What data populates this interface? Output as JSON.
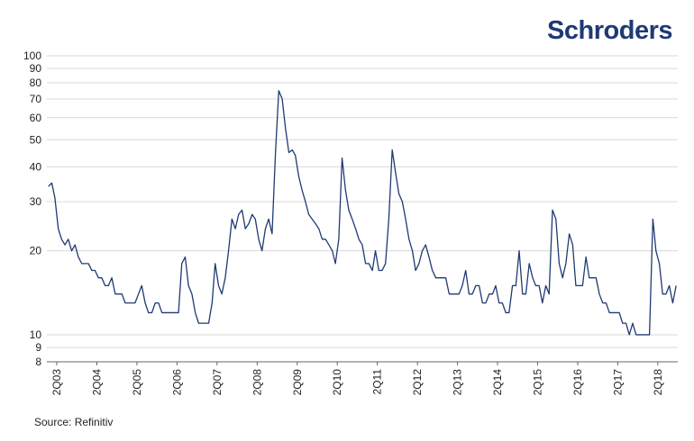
{
  "brand": {
    "name": "Schroders"
  },
  "footer": {
    "source": "Source: Refinitiv"
  },
  "colors": {
    "line": "#1f3a73",
    "grid": "#d9d9d9",
    "axis": "#666666",
    "text": "#222222"
  },
  "chart_data": {
    "type": "line",
    "title": "",
    "xlabel": "",
    "ylabel": "",
    "y_scale": "log",
    "ylim": [
      8,
      100
    ],
    "y_ticks": [
      8,
      9,
      10,
      20,
      30,
      40,
      50,
      60,
      70,
      80,
      90,
      100
    ],
    "y_tick_labels": [
      "8",
      "9",
      "10",
      "20",
      "30",
      "40",
      "50",
      "60",
      "70",
      "80",
      "90",
      "100"
    ],
    "x_range": [
      "2003-01-01",
      "2018-09-30"
    ],
    "x_tick_labels": [
      "2Q03",
      "2Q04",
      "2Q05",
      "2Q06",
      "2Q07",
      "2Q08",
      "2Q09",
      "2Q10",
      "2Q11",
      "2Q12",
      "2Q13",
      "2Q14",
      "2Q15",
      "2Q16",
      "2Q17",
      "2Q18"
    ],
    "grid": true,
    "legend": "none",
    "series": [
      {
        "x": [
          "2003-01",
          "2003-02",
          "2003-03",
          "2003-04",
          "2003-05",
          "2003-06",
          "2003-07",
          "2003-08",
          "2003-09",
          "2003-10",
          "2003-11",
          "2003-12",
          "2004-01",
          "2004-02",
          "2004-03",
          "2004-04",
          "2004-05",
          "2004-06",
          "2004-07",
          "2004-08",
          "2004-09",
          "2004-10",
          "2004-11",
          "2004-12",
          "2005-01",
          "2005-02",
          "2005-03",
          "2005-04",
          "2005-05",
          "2005-06",
          "2005-07",
          "2005-08",
          "2005-09",
          "2005-10",
          "2005-11",
          "2005-12",
          "2006-01",
          "2006-02",
          "2006-03",
          "2006-04",
          "2006-05",
          "2006-06",
          "2006-07",
          "2006-08",
          "2006-09",
          "2006-10",
          "2006-11",
          "2006-12",
          "2007-01",
          "2007-02",
          "2007-03",
          "2007-04",
          "2007-05",
          "2007-06",
          "2007-07",
          "2007-08",
          "2007-09",
          "2007-10",
          "2007-11",
          "2007-12",
          "2008-01",
          "2008-02",
          "2008-03",
          "2008-04",
          "2008-05",
          "2008-06",
          "2008-07",
          "2008-08",
          "2008-09",
          "2008-10",
          "2008-11",
          "2008-12",
          "2009-01",
          "2009-02",
          "2009-03",
          "2009-04",
          "2009-05",
          "2009-06",
          "2009-07",
          "2009-08",
          "2009-09",
          "2009-10",
          "2009-11",
          "2009-12",
          "2010-01",
          "2010-02",
          "2010-03",
          "2010-04",
          "2010-05",
          "2010-06",
          "2010-07",
          "2010-08",
          "2010-09",
          "2010-10",
          "2010-11",
          "2010-12",
          "2011-01",
          "2011-02",
          "2011-03",
          "2011-04",
          "2011-05",
          "2011-06",
          "2011-07",
          "2011-08",
          "2011-09",
          "2011-10",
          "2011-11",
          "2011-12",
          "2012-01",
          "2012-02",
          "2012-03",
          "2012-04",
          "2012-05",
          "2012-06",
          "2012-07",
          "2012-08",
          "2012-09",
          "2012-10",
          "2012-11",
          "2012-12",
          "2013-01",
          "2013-02",
          "2013-03",
          "2013-04",
          "2013-05",
          "2013-06",
          "2013-07",
          "2013-08",
          "2013-09",
          "2013-10",
          "2013-11",
          "2013-12",
          "2014-01",
          "2014-02",
          "2014-03",
          "2014-04",
          "2014-05",
          "2014-06",
          "2014-07",
          "2014-08",
          "2014-09",
          "2014-10",
          "2014-11",
          "2014-12",
          "2015-01",
          "2015-02",
          "2015-03",
          "2015-04",
          "2015-05",
          "2015-06",
          "2015-07",
          "2015-08",
          "2015-09",
          "2015-10",
          "2015-11",
          "2015-12",
          "2016-01",
          "2016-02",
          "2016-03",
          "2016-04",
          "2016-05",
          "2016-06",
          "2016-07",
          "2016-08",
          "2016-09",
          "2016-10",
          "2016-11",
          "2016-12",
          "2017-01",
          "2017-02",
          "2017-03",
          "2017-04",
          "2017-05",
          "2017-06",
          "2017-07",
          "2017-08",
          "2017-09",
          "2017-10",
          "2017-11",
          "2017-12",
          "2018-01",
          "2018-02",
          "2018-03",
          "2018-04",
          "2018-05",
          "2018-06",
          "2018-07",
          "2018-08",
          "2018-09"
        ],
        "values": [
          34,
          35,
          31,
          24,
          22,
          21,
          22,
          20,
          21,
          19,
          18,
          18,
          18,
          17,
          17,
          16,
          16,
          15,
          15,
          16,
          14,
          14,
          14,
          13,
          13,
          13,
          13,
          14,
          15,
          13,
          12,
          12,
          13,
          13,
          12,
          12,
          12,
          12,
          12,
          12,
          18,
          19,
          15,
          14,
          12,
          11,
          11,
          11,
          11,
          13,
          18,
          15,
          14,
          16,
          20,
          26,
          24,
          27,
          28,
          24,
          25,
          27,
          26,
          22,
          20,
          24,
          26,
          23,
          45,
          75,
          70,
          55,
          45,
          46,
          44,
          37,
          33,
          30,
          27,
          26,
          25,
          24,
          22,
          22,
          21,
          20,
          18,
          22,
          43,
          33,
          28,
          26,
          24,
          22,
          21,
          18,
          18,
          17,
          20,
          17,
          17,
          18,
          26,
          46,
          38,
          32,
          30,
          26,
          22,
          20,
          17,
          18,
          20,
          21,
          19,
          17,
          16,
          16,
          16,
          16,
          14,
          14,
          14,
          14,
          15,
          17,
          14,
          14,
          15,
          15,
          13,
          13,
          14,
          14,
          15,
          13,
          13,
          12,
          12,
          15,
          15,
          20,
          14,
          14,
          18,
          16,
          15,
          15,
          13,
          15,
          14,
          28,
          26,
          18,
          16,
          18,
          23,
          21,
          15,
          15,
          15,
          19,
          16,
          16,
          16,
          14,
          13,
          13,
          12,
          12,
          12,
          12,
          11,
          11,
          10,
          11,
          10,
          10,
          10,
          10,
          10,
          26,
          20,
          18,
          14,
          14,
          15,
          13,
          15
        ]
      }
    ]
  }
}
